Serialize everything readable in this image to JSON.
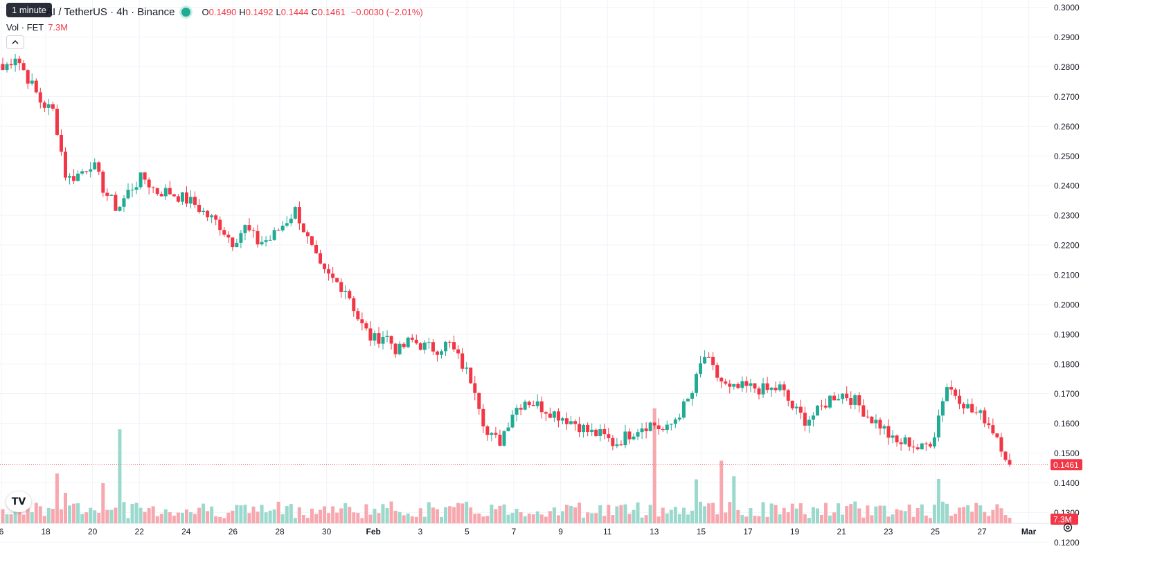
{
  "header": {
    "symbol": "AI / TetherUS · 4h · Binance",
    "o_label": "O",
    "o_value": "0.1490",
    "h_label": "H",
    "h_value": "0.1492",
    "l_label": "L",
    "l_value": "0.1444",
    "c_label": "C",
    "c_value": "0.1461",
    "change": "−0.0030 (−2.01%)",
    "status_color": "#22ab94"
  },
  "tooltip": "1 minute",
  "volume": {
    "label": "Vol · FET",
    "value": "7.3M"
  },
  "collapse_icon": "chevron-up-icon",
  "logo_text": "TV",
  "colors": {
    "up": "#22ab94",
    "down": "#f23645",
    "vol_up": "#9bd9cd",
    "vol_down": "#f7a8ae"
  },
  "chart_data": {
    "type": "candlestick",
    "timeframe": "4h",
    "y_ticks": [
      "0.1200",
      "0.1300",
      "0.1400",
      "0.1500",
      "0.1600",
      "0.1700",
      "0.1800",
      "0.1900",
      "0.2000",
      "0.2100",
      "0.2200",
      "0.2300",
      "0.2400",
      "0.2500",
      "0.2600",
      "0.2700",
      "0.2800",
      "0.2900",
      "0.3000"
    ],
    "ylim": [
      0.1175,
      0.3025
    ],
    "x_ticks": [
      "6",
      "18",
      "20",
      "22",
      "24",
      "26",
      "28",
      "30",
      "Feb",
      "3",
      "5",
      "7",
      "9",
      "11",
      "13",
      "15",
      "17",
      "19",
      "21",
      "23",
      "25",
      "27",
      "Mar"
    ],
    "last_price": "0.1461",
    "last_volume": "7.3M",
    "close_path": [
      0.279,
      0.284,
      0.276,
      0.268,
      0.265,
      0.242,
      0.244,
      0.248,
      0.238,
      0.232,
      0.239,
      0.243,
      0.238,
      0.238,
      0.236,
      0.234,
      0.23,
      0.227,
      0.221,
      0.226,
      0.221,
      0.222,
      0.227,
      0.232,
      0.221,
      0.211,
      0.208,
      0.205,
      0.194,
      0.188,
      0.19,
      0.184,
      0.188,
      0.186,
      0.185,
      0.187,
      0.18,
      0.173,
      0.156,
      0.154,
      0.164,
      0.168,
      0.166,
      0.164,
      0.162,
      0.16,
      0.157,
      0.156,
      0.153,
      0.156,
      0.159,
      0.16,
      0.157,
      0.163,
      0.169,
      0.183,
      0.176,
      0.171,
      0.172,
      0.172,
      0.171,
      0.172,
      0.165,
      0.161,
      0.164,
      0.169,
      0.17,
      0.167,
      0.162,
      0.159,
      0.153,
      0.154,
      0.151,
      0.155,
      0.173,
      0.169,
      0.164,
      0.162,
      0.156,
      0.1461
    ],
    "volume_max_m": 22
  }
}
